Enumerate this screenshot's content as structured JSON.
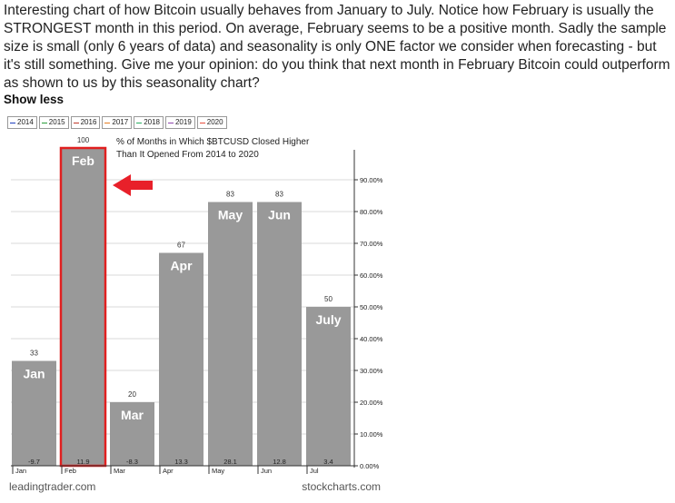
{
  "post": {
    "text": "Interesting chart of how Bitcoin usually behaves from January to July.  Notice how February is usually the STRONGEST month in this period.  On average, February seems to be a positive month.  Sadly the sample size is small (only 6 years of data) and seasonality is only ONE factor we consider when forecasting - but it's still something.  Give me your opinion: do you think that next month in February Bitcoin could outperform as shown to us by this seasonality chart?",
    "show_less": "Show less"
  },
  "legend": [
    {
      "label": "2014",
      "color": "#1f3fbf"
    },
    {
      "label": "2015",
      "color": "#2a9d3a"
    },
    {
      "label": "2016",
      "color": "#c0392b"
    },
    {
      "label": "2017",
      "color": "#e67e22"
    },
    {
      "label": "2018",
      "color": "#27ae60"
    },
    {
      "label": "2019",
      "color": "#8e44ad"
    },
    {
      "label": "2020",
      "color": "#e74c3c"
    }
  ],
  "footer": {
    "left": "leadingtrader.com",
    "right": "stockcharts.com"
  },
  "colors": {
    "bar": "#999999",
    "highlight": "#e02020",
    "arrow": "#e8202a"
  },
  "chart_data": {
    "type": "bar",
    "title": "% of Months in Which $BTCUSD Closed Higher\nThan It Opened From 2014 to 2020",
    "categories": [
      "Jan",
      "Feb",
      "Mar",
      "Apr",
      "May",
      "Jun",
      "Jul"
    ],
    "bar_labels": [
      "Jan",
      "Feb",
      "Mar",
      "Apr",
      "May",
      "Jun",
      "July"
    ],
    "values": [
      33,
      100,
      20,
      67,
      83,
      83,
      50
    ],
    "avg_change": [
      "-9.7",
      "11.9",
      "-8.3",
      "13.3",
      "28.1",
      "12.8",
      "3.4"
    ],
    "highlight_category": "Feb",
    "ylim": [
      0,
      100
    ],
    "yticks": [
      "0.00%",
      "10.00%",
      "20.00%",
      "30.00%",
      "40.00%",
      "50.00%",
      "60.00%",
      "70.00%",
      "80.00%",
      "90.00%"
    ],
    "grid": true
  }
}
